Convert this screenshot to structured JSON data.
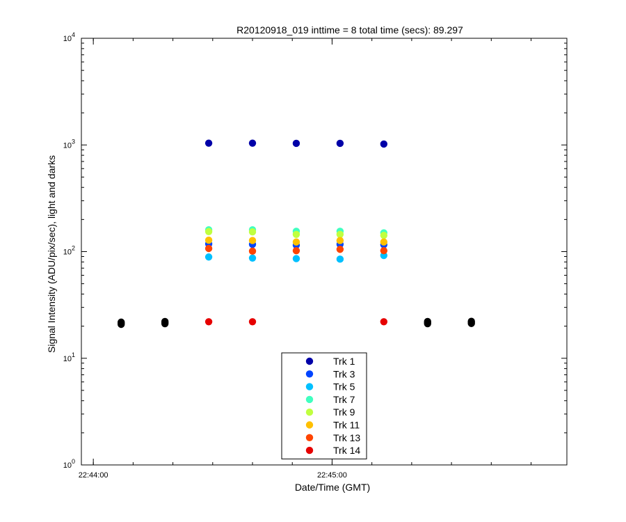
{
  "chart_data": {
    "type": "scatter",
    "title": "R20120918_019 inttime = 8 total time (secs): 89.297",
    "xlabel": "Date/Time (GMT)",
    "ylabel": "Signal Intensity (ADU/pix/sec), light and darks",
    "xscale": "time",
    "yscale": "log",
    "xlim": [
      "22:43:57",
      "22:45:59"
    ],
    "ylim": [
      1,
      10000
    ],
    "x_ticks": [
      "22:44:00",
      "22:45:00"
    ],
    "y_ticks": [
      {
        "value": 1,
        "base": "10",
        "exp": "0"
      },
      {
        "value": 10,
        "base": "10",
        "exp": "1"
      },
      {
        "value": 100,
        "base": "10",
        "exp": "2"
      },
      {
        "value": 1000,
        "base": "10",
        "exp": "3"
      },
      {
        "value": 10000,
        "base": "10",
        "exp": "4"
      }
    ],
    "grid": false,
    "legend": "bottom-center",
    "series": [
      {
        "name": "Trk 1",
        "color": "#0000a8",
        "x": [
          "22:44:29",
          "22:44:40",
          "22:44:51",
          "22:45:02",
          "22:45:13"
        ],
        "y": [
          1040,
          1040,
          1035,
          1035,
          1020
        ]
      },
      {
        "name": "Trk 3",
        "color": "#0044ff",
        "x": [
          "22:44:29",
          "22:44:40",
          "22:44:51",
          "22:45:02",
          "22:45:13"
        ],
        "y": [
          118,
          117,
          115,
          117,
          116
        ]
      },
      {
        "name": "Trk 5",
        "color": "#00c0ff",
        "x": [
          "22:44:29",
          "22:44:40",
          "22:44:51",
          "22:45:02",
          "22:45:13"
        ],
        "y": [
          89,
          87,
          86,
          85,
          92
        ]
      },
      {
        "name": "Trk 7",
        "color": "#40ffc0",
        "x": [
          "22:44:29",
          "22:44:40",
          "22:44:51",
          "22:45:02",
          "22:45:13"
        ],
        "y": [
          160,
          160,
          155,
          155,
          150
        ]
      },
      {
        "name": "Trk 9",
        "color": "#c0ff40",
        "x": [
          "22:44:29",
          "22:44:40",
          "22:44:51",
          "22:45:02",
          "22:45:13"
        ],
        "y": [
          154,
          153,
          145,
          145,
          142
        ]
      },
      {
        "name": "Trk 11",
        "color": "#ffc000",
        "x": [
          "22:44:29",
          "22:44:40",
          "22:44:51",
          "22:45:02",
          "22:45:13"
        ],
        "y": [
          128,
          127,
          123,
          127,
          123
        ]
      },
      {
        "name": "Trk 13",
        "color": "#ff4400",
        "x": [
          "22:44:29",
          "22:44:40",
          "22:44:51",
          "22:45:02",
          "22:45:13"
        ],
        "y": [
          107,
          101,
          102,
          105,
          102
        ]
      },
      {
        "name": "Trk 14",
        "color": "#e60000",
        "x": [
          "22:44:29",
          "22:44:40",
          "22:45:13"
        ],
        "y": [
          22,
          22,
          22
        ]
      },
      {
        "name": "",
        "color": "#000000",
        "x": [
          "22:44:07",
          "22:44:07",
          "22:44:07",
          "22:44:18",
          "22:44:18",
          "22:44:18",
          "22:45:24",
          "22:45:24",
          "22:45:24",
          "22:45:35",
          "22:45:35",
          "22:45:35"
        ],
        "y": [
          21.8,
          21.3,
          20.8,
          22.1,
          21.6,
          21.1,
          22.1,
          21.6,
          21.1,
          22.2,
          21.7,
          21.2
        ]
      }
    ]
  }
}
